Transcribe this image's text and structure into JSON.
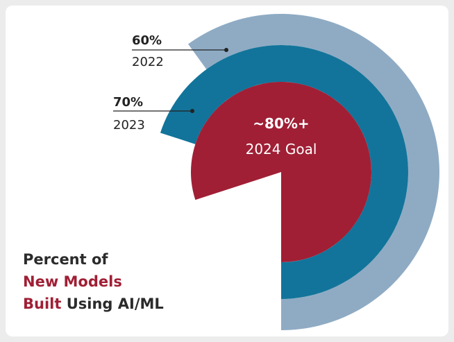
{
  "chart_data": {
    "type": "radial-bar",
    "categories": [
      "2022",
      "2023",
      "2024 Goal"
    ],
    "values": [
      60,
      70,
      80
    ],
    "value_labels": [
      "60%",
      "70%",
      "~80%+"
    ],
    "colors": [
      "#8fabc4",
      "#12749a",
      "#a01f35"
    ],
    "caption": [
      "Percent of",
      "New Models",
      "Built",
      "Using AI/ML"
    ]
  }
}
